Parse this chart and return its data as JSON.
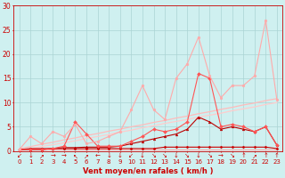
{
  "background_color": "#cff0f0",
  "grid_color": "#aad4d4",
  "xlabel": "Vent moyen/en rafales ( km/h )",
  "xlabel_color": "#cc0000",
  "xlabel_fontsize": 6.0,
  "xtick_fontsize": 5.0,
  "ytick_fontsize": 5.5,
  "xlim": [
    -0.5,
    23.5
  ],
  "ylim": [
    0,
    30
  ],
  "yticks": [
    0,
    5,
    10,
    15,
    20,
    25,
    30
  ],
  "xticks": [
    0,
    1,
    2,
    3,
    4,
    5,
    6,
    7,
    8,
    9,
    10,
    11,
    12,
    13,
    14,
    15,
    16,
    17,
    18,
    19,
    20,
    21,
    22,
    23
  ],
  "series": [
    {
      "x": [
        0,
        1,
        2,
        3,
        4,
        5,
        6,
        7,
        8,
        9,
        10,
        11,
        12,
        13,
        14,
        15,
        16,
        17,
        18,
        19,
        20,
        21,
        22,
        23
      ],
      "y": [
        0.3,
        0.3,
        0.3,
        0.3,
        0.3,
        0.3,
        0.3,
        0.3,
        0.3,
        0.3,
        0.3,
        0.3,
        0.3,
        0.3,
        0.3,
        0.3,
        0.3,
        0.3,
        0.3,
        0.3,
        0.3,
        0.3,
        0.3,
        0.3
      ],
      "color": "#ffaaaa",
      "linewidth": 0.8,
      "marker": null,
      "markersize": 0
    },
    {
      "x": [
        0,
        1,
        2,
        3,
        4,
        5,
        6,
        7,
        8,
        9,
        10,
        11,
        12,
        13,
        14,
        15,
        16,
        17,
        18,
        19,
        20,
        21,
        22,
        23
      ],
      "y": [
        0.3,
        0.5,
        0.5,
        0.5,
        0.5,
        0.5,
        0.5,
        0.5,
        0.5,
        0.5,
        0.5,
        0.5,
        0.5,
        0.8,
        0.8,
        0.8,
        0.8,
        0.8,
        0.8,
        0.8,
        0.8,
        0.8,
        0.8,
        0.5
      ],
      "color": "#cc0000",
      "linewidth": 0.8,
      "marker": "D",
      "markersize": 1.5
    },
    {
      "x": [
        0,
        1,
        2,
        3,
        4,
        5,
        6,
        7,
        8,
        9,
        10,
        11,
        12,
        13,
        14,
        15,
        16,
        17,
        18,
        19,
        20,
        21,
        22,
        23
      ],
      "y": [
        0.3,
        0.3,
        0.3,
        0.5,
        0.7,
        0.7,
        0.8,
        0.8,
        0.8,
        1.0,
        1.5,
        2.0,
        2.5,
        3.0,
        3.5,
        4.5,
        7.0,
        6.0,
        4.5,
        5.0,
        4.5,
        4.0,
        5.0,
        1.2
      ],
      "color": "#bb0000",
      "linewidth": 0.8,
      "marker": "^",
      "markersize": 2.0
    },
    {
      "x": [
        0,
        1,
        2,
        3,
        4,
        5,
        6,
        7,
        8,
        9,
        10,
        11,
        12,
        13,
        14,
        15,
        16,
        17,
        18,
        19,
        20,
        21,
        22,
        23
      ],
      "y": [
        0.3,
        0.3,
        0.3,
        0.5,
        1.0,
        6.0,
        3.5,
        1.0,
        1.0,
        1.0,
        2.0,
        3.0,
        4.5,
        4.0,
        4.5,
        6.0,
        16.0,
        15.0,
        5.0,
        5.5,
        5.0,
        4.0,
        5.0,
        1.2
      ],
      "color": "#ff5555",
      "linewidth": 0.8,
      "marker": "D",
      "markersize": 2.0
    },
    {
      "x": [
        0,
        1,
        2,
        3,
        4,
        5,
        6,
        7,
        8,
        9,
        10,
        11,
        12,
        13,
        14,
        15,
        16,
        17,
        18,
        19,
        20,
        21,
        22,
        23
      ],
      "y": [
        0.3,
        3.0,
        1.5,
        4.0,
        3.0,
        5.5,
        1.5,
        2.0,
        3.0,
        4.0,
        8.5,
        13.5,
        8.5,
        6.5,
        15.0,
        18.0,
        23.5,
        15.5,
        11.0,
        13.5,
        13.5,
        15.5,
        27.0,
        10.5
      ],
      "color": "#ffaaaa",
      "linewidth": 0.8,
      "marker": "o",
      "markersize": 2.0
    },
    {
      "x": [
        0,
        1,
        2,
        3,
        4,
        5,
        6,
        7,
        8,
        9,
        10,
        11,
        12,
        13,
        14,
        15,
        16,
        17,
        18,
        19,
        20,
        21,
        22,
        23
      ],
      "y": [
        0.0,
        0.5,
        0.9,
        1.3,
        1.7,
        2.1,
        2.6,
        3.0,
        3.4,
        3.9,
        4.3,
        4.8,
        5.2,
        5.7,
        6.1,
        6.5,
        7.0,
        7.4,
        7.8,
        8.3,
        8.7,
        9.1,
        9.6,
        10.0
      ],
      "color": "#ffcccc",
      "linewidth": 0.9,
      "marker": null,
      "markersize": 0
    },
    {
      "x": [
        0,
        1,
        2,
        3,
        4,
        5,
        6,
        7,
        8,
        9,
        10,
        11,
        12,
        13,
        14,
        15,
        16,
        17,
        18,
        19,
        20,
        21,
        22,
        23
      ],
      "y": [
        0.5,
        0.9,
        1.4,
        1.8,
        2.3,
        2.7,
        3.2,
        3.6,
        4.1,
        4.5,
        5.0,
        5.4,
        5.9,
        6.3,
        6.8,
        7.2,
        7.7,
        8.1,
        8.6,
        9.0,
        9.5,
        9.9,
        10.4,
        10.8
      ],
      "color": "#ffbbbb",
      "linewidth": 0.9,
      "marker": null,
      "markersize": 0
    }
  ],
  "wind_arrows": [
    "↙",
    "↓",
    "↗",
    "→",
    "→",
    "↖",
    "↗",
    "←",
    "↓",
    "↓",
    "↙",
    "↓",
    "↘",
    "↘",
    "↓",
    "↘",
    "↓",
    "↘",
    "→",
    "↘",
    "↑",
    "↗",
    "↑",
    "↑"
  ],
  "tick_label_color": "#cc0000"
}
